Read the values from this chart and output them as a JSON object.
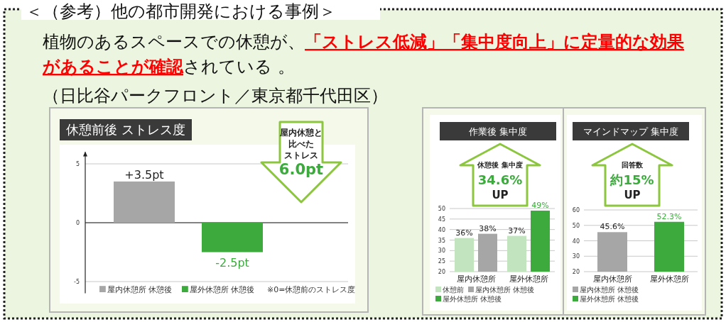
{
  "chart_data": [
    {
      "type": "bar",
      "title": "休憩前後 ストレス度",
      "annotations": [
        "＜（参考）他の都市開発における事例＞",
        "植物のあるスペースでの休憩が、**「ストレス低減」「集中度向上」に定量的な効果**",
        "**があることが確認**されている 。",
        "（日比谷パークフロント／東京都千代田区）",
        "屋内休憩と",
        "比べた",
        "ストレス",
        "6.0pt",
        "※0=休憩前のストレス度"
      ],
      "categories": [
        null
      ],
      "series": [
        {
          "name": "屋内休憩所 休憩後",
          "color": "#a6a6a6",
          "values": [
            3.5
          ],
          "value_labels": [
            "+3.5pt"
          ]
        },
        {
          "name": "屋外休憩所 休憩後",
          "color": "#3daa3d",
          "values": [
            -2.5
          ],
          "value_labels": [
            "-2.5pt"
          ]
        }
      ],
      "ylim": [
        -6,
        6
      ],
      "yticks": [
        -5,
        0,
        5
      ],
      "grid": "y",
      "legend": "bottom"
    },
    {
      "type": "bar",
      "title": "作業後 集中度",
      "annotations": [
        "休憩後 集中度",
        "34.6%",
        "UP"
      ],
      "categories": [
        "屋内休憩所",
        "屋外休憩所"
      ],
      "series": [
        {
          "name": "休憩前",
          "color": "#c2e5bf",
          "values": [
            36,
            37
          ],
          "value_labels": [
            "36%",
            "37%"
          ]
        },
        {
          "name": "屋内休憩所 休憩後",
          "color": "#a6a6a6",
          "values": [
            38,
            null
          ],
          "value_labels": [
            "38%",
            null
          ]
        },
        {
          "name": "屋外休憩所 休憩後",
          "color": "#3daa3d",
          "values": [
            null,
            49
          ],
          "value_labels": [
            null,
            "49%"
          ]
        }
      ],
      "ylim": [
        20,
        50
      ],
      "yticks": [
        20,
        25,
        30,
        35,
        40,
        45,
        50
      ],
      "grid": "y",
      "legend": "bottom"
    },
    {
      "type": "bar",
      "title": "マインドマップ 集中度",
      "annotations": [
        "回答数",
        "約15%",
        "UP"
      ],
      "categories": [
        "屋内休憩所",
        "屋外休憩所"
      ],
      "series": [
        {
          "name": "屋内休憩所 休憩後",
          "color": "#a6a6a6",
          "values": [
            45.6,
            null
          ],
          "value_labels": [
            "45.6%",
            null
          ]
        },
        {
          "name": "屋外休憩所 休憩後",
          "color": "#3daa3d",
          "values": [
            null,
            52.3
          ],
          "value_labels": [
            null,
            "52.3%"
          ]
        }
      ],
      "ylim": [
        20,
        60
      ],
      "yticks": [
        20,
        30,
        40,
        50,
        60
      ],
      "grid": "y",
      "legend": "bottom"
    }
  ]
}
